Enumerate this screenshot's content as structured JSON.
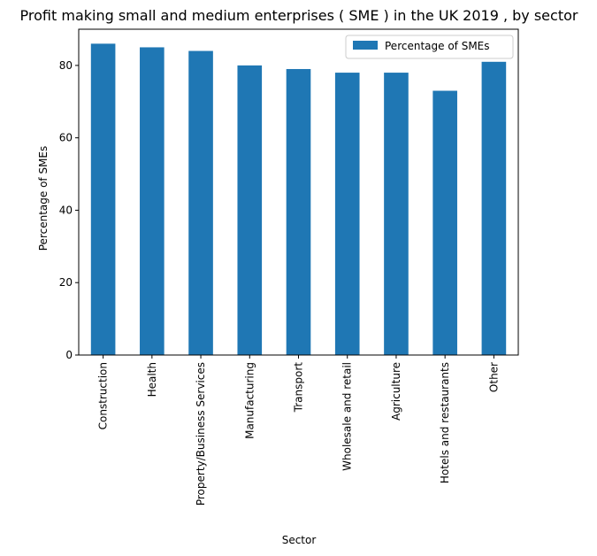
{
  "chart_data": {
    "type": "bar",
    "title": "Profit making small and medium enterprises ( SME ) in the UK 2019 , by sector",
    "xlabel": "Sector",
    "ylabel": "Percentage of SMEs",
    "categories": [
      "Construction",
      "Health",
      "Property/Business Services",
      "Manufacturing",
      "Transport",
      "Wholesale and retail",
      "Agriculture",
      "Hotels and restaurants",
      "Other"
    ],
    "series": [
      {
        "name": "Percentage of SMEs",
        "values": [
          86,
          85,
          84,
          80,
          79,
          78,
          78,
          73,
          81
        ]
      }
    ],
    "ylim": [
      0,
      90
    ],
    "yticks": [
      0,
      20,
      40,
      60,
      80
    ],
    "grid": false,
    "legend_position": "top-right",
    "bar_color": "#1f77b4"
  }
}
